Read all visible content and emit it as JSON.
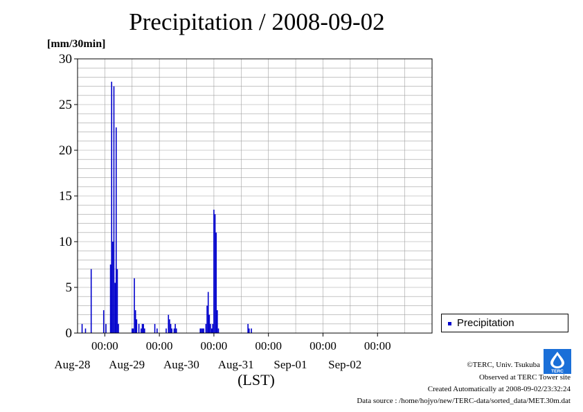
{
  "chart_data": {
    "type": "bar",
    "title": "Precipitation / 2008-09-02",
    "ylabel": "[mm/30min]",
    "xlabel": "(LST)",
    "ylim": [
      0,
      30
    ],
    "yticks": [
      0,
      5,
      10,
      15,
      20,
      25,
      30
    ],
    "xlim": [
      "2008-08-27 12:00",
      "2008-09-03 00:00"
    ],
    "x_ticks": [
      {
        "time": "2008-08-28 00:00",
        "label": "00:00",
        "date": "Aug-28"
      },
      {
        "time": "2008-08-29 00:00",
        "label": "00:00",
        "date": "Aug-29"
      },
      {
        "time": "2008-08-30 00:00",
        "label": "00:00",
        "date": "Aug-30"
      },
      {
        "time": "2008-08-31 00:00",
        "label": "00:00",
        "date": "Aug-31"
      },
      {
        "time": "2008-09-01 00:00",
        "label": "00:00",
        "date": "Sep-01"
      },
      {
        "time": "2008-09-02 00:00",
        "label": "00:00",
        "date": "Sep-02"
      }
    ],
    "grid": true,
    "legend_position": "right",
    "series": [
      {
        "name": "Precipitation",
        "color": "#0000cc",
        "points": [
          [
            "2008-08-27 14:00",
            1.0
          ],
          [
            "2008-08-27 15:30",
            0.5
          ],
          [
            "2008-08-27 18:00",
            7.0
          ],
          [
            "2008-08-27 23:30",
            2.5
          ],
          [
            "2008-08-28 00:30",
            1.0
          ],
          [
            "2008-08-28 02:30",
            7.5
          ],
          [
            "2008-08-28 03:00",
            27.5
          ],
          [
            "2008-08-28 03:30",
            10.0
          ],
          [
            "2008-08-28 04:00",
            27.0
          ],
          [
            "2008-08-28 04:30",
            5.5
          ],
          [
            "2008-08-28 05:00",
            22.5
          ],
          [
            "2008-08-28 05:30",
            7.0
          ],
          [
            "2008-08-28 06:00",
            1.0
          ],
          [
            "2008-08-28 12:00",
            0.5
          ],
          [
            "2008-08-28 12:30",
            0.5
          ],
          [
            "2008-08-28 13:00",
            6.0
          ],
          [
            "2008-08-28 13:30",
            2.5
          ],
          [
            "2008-08-28 14:00",
            1.5
          ],
          [
            "2008-08-28 15:00",
            1.0
          ],
          [
            "2008-08-28 16:00",
            0.5
          ],
          [
            "2008-08-28 16:30",
            1.0
          ],
          [
            "2008-08-28 17:00",
            1.0
          ],
          [
            "2008-08-28 17:30",
            0.5
          ],
          [
            "2008-08-28 22:00",
            1.0
          ],
          [
            "2008-08-28 23:00",
            0.5
          ],
          [
            "2008-08-29 03:00",
            0.5
          ],
          [
            "2008-08-29 04:00",
            2.0
          ],
          [
            "2008-08-29 04:30",
            1.5
          ],
          [
            "2008-08-29 05:00",
            1.0
          ],
          [
            "2008-08-29 05:30",
            0.5
          ],
          [
            "2008-08-29 06:30",
            0.5
          ],
          [
            "2008-08-29 07:00",
            1.0
          ],
          [
            "2008-08-29 07:30",
            0.5
          ],
          [
            "2008-08-29 18:00",
            0.5
          ],
          [
            "2008-08-29 18:30",
            0.5
          ],
          [
            "2008-08-29 19:00",
            0.5
          ],
          [
            "2008-08-29 19:30",
            0.5
          ],
          [
            "2008-08-29 20:30",
            1.0
          ],
          [
            "2008-08-29 21:00",
            3.0
          ],
          [
            "2008-08-29 21:30",
            4.5
          ],
          [
            "2008-08-29 22:00",
            2.0
          ],
          [
            "2008-08-29 22:30",
            1.0
          ],
          [
            "2008-08-29 23:00",
            0.5
          ],
          [
            "2008-08-29 23:30",
            1.0
          ],
          [
            "2008-08-30 00:00",
            13.5
          ],
          [
            "2008-08-30 00:30",
            13.0
          ],
          [
            "2008-08-30 01:00",
            11.0
          ],
          [
            "2008-08-30 01:30",
            2.5
          ],
          [
            "2008-08-30 02:00",
            0.5
          ],
          [
            "2008-08-30 15:00",
            1.0
          ],
          [
            "2008-08-30 15:30",
            0.5
          ],
          [
            "2008-08-30 16:30",
            0.5
          ]
        ]
      }
    ]
  },
  "legend": {
    "label": "Precipitation"
  },
  "footer": {
    "copyright": "©TERC, Univ. Tsukuba",
    "observed": "Observed at TERC Tower site",
    "created": "Created Automatically at 2008-09-02/23:32:24",
    "source": "Data source : /home/hojyo/new/TERC-data/sorted_data/MET.30m.dat"
  },
  "logo": {
    "text": "TERC"
  }
}
